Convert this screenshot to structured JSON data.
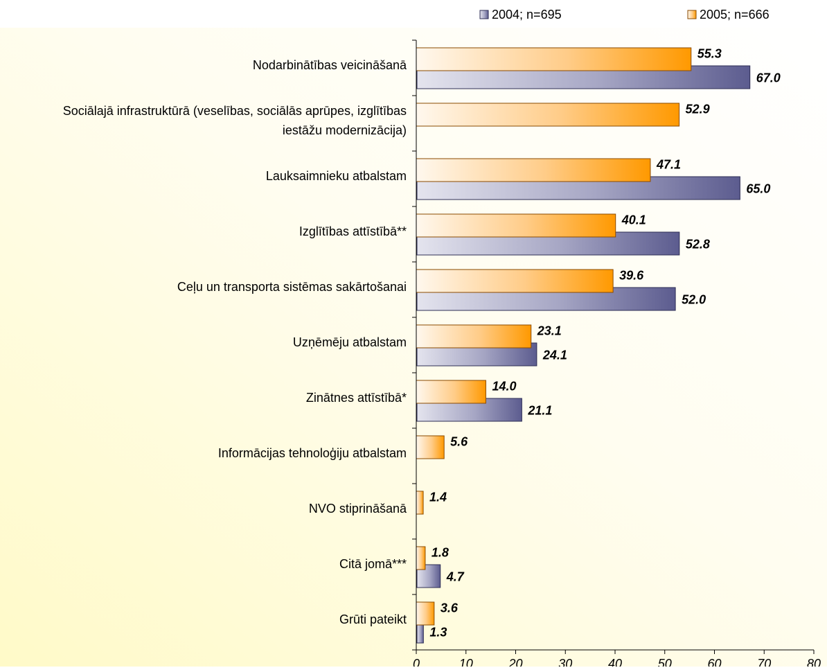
{
  "chart_data": {
    "type": "bar",
    "orientation": "horizontal",
    "categories": [
      "Nodarbinātības veicināšanā",
      "Sociālajā infrastruktūrā (veselības, sociālās aprūpes, izglītības iestāžu modernizācija)",
      "Lauksaimnieku atbalstam",
      "Izglītības attīstībā**",
      "Ceļu un transporta sistēmas sakārtošanai",
      "Uzņēmēju atbalstam",
      "Zinātnes attīstībā*",
      "Informācijas tehnoloģiju atbalstam",
      "NVO stiprināšanā",
      "Citā jomā***",
      "Grūti pateikt"
    ],
    "category_lines": [
      [
        "Nodarbinātības veicināšanā"
      ],
      [
        "Sociālajā infrastruktūrā (veselības, sociālās aprūpes, izglītības",
        "iestāžu modernizācija)"
      ],
      [
        "Lauksaimnieku atbalstam"
      ],
      [
        "Izglītības attīstībā**"
      ],
      [
        "Ceļu un transporta sistēmas sakārtošanai"
      ],
      [
        "Uzņēmēju atbalstam"
      ],
      [
        "Zinātnes attīstībā*"
      ],
      [
        "Informācijas tehnoloģiju atbalstam"
      ],
      [
        "NVO stiprināšanā"
      ],
      [
        "Citā jomā***"
      ],
      [
        "Grūti pateikt"
      ]
    ],
    "series": [
      {
        "name": "2005; n=666",
        "color": "#FF9900",
        "values": [
          55.3,
          52.9,
          47.1,
          40.1,
          39.6,
          23.1,
          14.0,
          5.6,
          1.4,
          1.8,
          3.6
        ],
        "labels": [
          "55.3",
          "52.9",
          "47.1",
          "40.1",
          "39.6",
          "23.1",
          "14.0",
          "5.6",
          "1.4",
          "1.8",
          "3.6"
        ]
      },
      {
        "name": "2004; n=695",
        "color": "#5C5C8F",
        "values": [
          67.0,
          null,
          65.0,
          52.8,
          52.0,
          24.1,
          21.1,
          null,
          null,
          4.7,
          1.3
        ],
        "labels": [
          "67.0",
          "",
          "65.0",
          "52.8",
          "52.0",
          "24.1",
          "21.1",
          "",
          "",
          "4.7",
          "1.3"
        ]
      }
    ],
    "xlim": [
      0,
      80
    ],
    "xticks": [
      "0",
      "10",
      "20",
      "30",
      "40",
      "50",
      "60",
      "70",
      "80"
    ],
    "grid": false,
    "legend_position": "top-right",
    "legend_order": [
      "2004; n=695",
      "2005; n=666"
    ]
  }
}
